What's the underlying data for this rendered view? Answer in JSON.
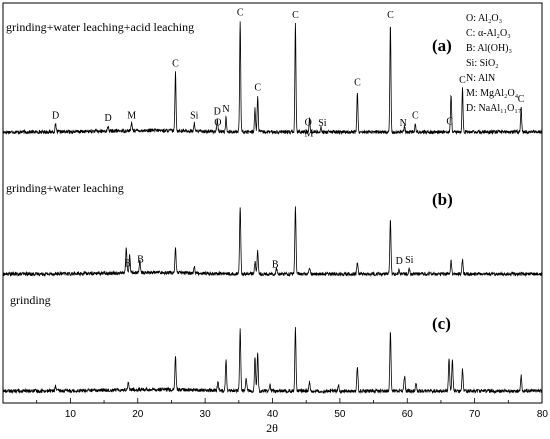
{
  "chart_data": {
    "type": "line",
    "title": "",
    "xlabel": "2θ",
    "ylabel": "",
    "xlim": [
      0,
      80
    ],
    "x_ticks": [
      "10",
      "20",
      "30",
      "40",
      "50",
      "60",
      "70",
      "80"
    ],
    "grid": false,
    "legend_position": "top-right",
    "legend": [
      "O: Al₂O₃",
      "C: α-Al₂O₃",
      "B: Al(OH)₃",
      "Si: SiO₂",
      "N: AlN",
      "M: MgAl₂O₄",
      "D: NaAl₁₁O₁₇"
    ],
    "series": [
      {
        "name": "grinding+water leaching+acid leaching",
        "panel": "(a)",
        "relative_peaks": [
          {
            "x": 7.8,
            "y": 0.06
          },
          {
            "x": 15.6,
            "y": 0.04
          },
          {
            "x": 19.1,
            "y": 0.06
          },
          {
            "x": 25.6,
            "y": 0.47
          },
          {
            "x": 28.4,
            "y": 0.06
          },
          {
            "x": 31.8,
            "y": 0.09
          },
          {
            "x": 33.1,
            "y": 0.11
          },
          {
            "x": 35.2,
            "y": 0.87
          },
          {
            "x": 37.4,
            "y": 0.19
          },
          {
            "x": 37.8,
            "y": 0.28
          },
          {
            "x": 43.4,
            "y": 0.85
          },
          {
            "x": 45.5,
            "y": 0.11
          },
          {
            "x": 47.2,
            "y": 0.04
          },
          {
            "x": 52.6,
            "y": 0.32
          },
          {
            "x": 57.5,
            "y": 0.85
          },
          {
            "x": 59.6,
            "y": 0.05
          },
          {
            "x": 61.2,
            "y": 0.06
          },
          {
            "x": 66.5,
            "y": 0.3
          },
          {
            "x": 68.2,
            "y": 0.34
          },
          {
            "x": 76.9,
            "y": 0.19
          }
        ],
        "peak_labels": [
          {
            "x": 7.8,
            "label": "D"
          },
          {
            "x": 15.6,
            "label": "D"
          },
          {
            "x": 19.1,
            "label": "M"
          },
          {
            "x": 25.6,
            "label": "C"
          },
          {
            "x": 28.4,
            "label": "Si"
          },
          {
            "x": 31.8,
            "label": "D"
          },
          {
            "x": 31.9,
            "label": "O"
          },
          {
            "x": 33.1,
            "label": "N"
          },
          {
            "x": 35.2,
            "label": "C"
          },
          {
            "x": 37.8,
            "label": "C"
          },
          {
            "x": 43.4,
            "label": "C"
          },
          {
            "x": 45.3,
            "label": "O"
          },
          {
            "x": 45.4,
            "label": "M"
          },
          {
            "x": 47.4,
            "label": "Si"
          },
          {
            "x": 52.6,
            "label": "C"
          },
          {
            "x": 57.5,
            "label": "C"
          },
          {
            "x": 59.4,
            "label": "N"
          },
          {
            "x": 61.2,
            "label": "C"
          },
          {
            "x": 66.3,
            "label": "C"
          },
          {
            "x": 68.2,
            "label": "C"
          },
          {
            "x": 76.9,
            "label": "C"
          }
        ]
      },
      {
        "name": "grinding+water leaching",
        "panel": "(b)",
        "relative_peaks": [
          {
            "x": 18.3,
            "y": 0.2
          },
          {
            "x": 18.8,
            "y": 0.14
          },
          {
            "x": 20.3,
            "y": 0.09
          },
          {
            "x": 25.6,
            "y": 0.2
          },
          {
            "x": 28.4,
            "y": 0.05
          },
          {
            "x": 35.2,
            "y": 0.54
          },
          {
            "x": 37.4,
            "y": 0.1
          },
          {
            "x": 37.8,
            "y": 0.18
          },
          {
            "x": 40.6,
            "y": 0.05
          },
          {
            "x": 43.4,
            "y": 0.54
          },
          {
            "x": 45.5,
            "y": 0.05
          },
          {
            "x": 52.6,
            "y": 0.1
          },
          {
            "x": 57.5,
            "y": 0.44
          },
          {
            "x": 58.8,
            "y": 0.03
          },
          {
            "x": 60.3,
            "y": 0.04
          },
          {
            "x": 66.5,
            "y": 0.11
          },
          {
            "x": 68.2,
            "y": 0.11
          }
        ],
        "peak_labels": [
          {
            "x": 18.5,
            "label": "B"
          },
          {
            "x": 20.4,
            "label": "B"
          },
          {
            "x": 40.4,
            "label": "B"
          },
          {
            "x": 58.8,
            "label": "D"
          },
          {
            "x": 60.3,
            "label": "Si"
          }
        ]
      },
      {
        "name": "grinding",
        "panel": "(c)",
        "relative_peaks": [
          {
            "x": 7.8,
            "y": 0.04
          },
          {
            "x": 18.6,
            "y": 0.06
          },
          {
            "x": 25.6,
            "y": 0.26
          },
          {
            "x": 31.9,
            "y": 0.07
          },
          {
            "x": 33.1,
            "y": 0.24
          },
          {
            "x": 35.2,
            "y": 0.49
          },
          {
            "x": 36.1,
            "y": 0.1
          },
          {
            "x": 37.4,
            "y": 0.26
          },
          {
            "x": 37.8,
            "y": 0.31
          },
          {
            "x": 39.6,
            "y": 0.05
          },
          {
            "x": 43.4,
            "y": 0.49
          },
          {
            "x": 45.5,
            "y": 0.07
          },
          {
            "x": 49.8,
            "y": 0.05
          },
          {
            "x": 52.6,
            "y": 0.2
          },
          {
            "x": 57.5,
            "y": 0.48
          },
          {
            "x": 59.6,
            "y": 0.12
          },
          {
            "x": 61.3,
            "y": 0.06
          },
          {
            "x": 66.2,
            "y": 0.26
          },
          {
            "x": 66.7,
            "y": 0.24
          },
          {
            "x": 68.2,
            "y": 0.18
          },
          {
            "x": 76.9,
            "y": 0.12
          }
        ],
        "peak_labels": []
      }
    ]
  }
}
